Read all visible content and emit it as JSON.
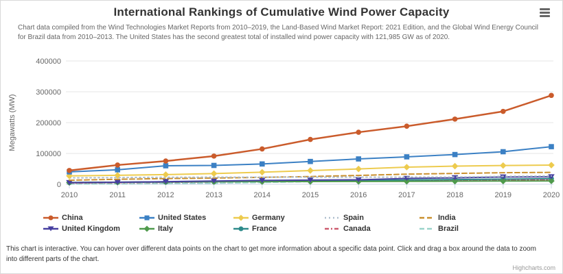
{
  "header": {
    "title": "International Rankings of Cumulative Wind Power Capacity",
    "subtitle": "Chart data compiled from the Wind Technologies Market Reports from 2010–2019, the Land-Based Wind Market Report: 2021 Edition, and the Global Wind Energy Council for Brazil data from 2010–2013. The United States has the second greatest total of installed wind power capacity with 121,985 GW as of 2020.",
    "menu_icon": "hamburger-menu-icon"
  },
  "footer": {
    "caption": "This chart is interactive. You can hover over different data points on the chart to get more information about a specific data point. Click and drag a box around the data to zoom into different parts of the chart.",
    "credits": "Highcharts.com"
  },
  "chart_data": {
    "type": "line",
    "title": "International Rankings of Cumulative Wind Power Capacity",
    "xlabel": "",
    "ylabel": "Megawatts (MW)",
    "categories": [
      "2010",
      "2011",
      "2012",
      "2013",
      "2014",
      "2015",
      "2016",
      "2017",
      "2018",
      "2019",
      "2020"
    ],
    "ylim": [
      0,
      400000
    ],
    "yticks": [
      0,
      100000,
      200000,
      300000,
      400000
    ],
    "grid": true,
    "legend_position": "bottom",
    "axis_text_color": "#666666",
    "grid_color": "#e6e6e6",
    "axis_line_color": "#ccd6eb",
    "series": [
      {
        "name": "China",
        "color": "#ca5b2b",
        "dash": "solid",
        "marker": "circle",
        "width": 2.5,
        "values": [
          44733,
          62364,
          75324,
          91413,
          114609,
          145362,
          168732,
          188392,
          211392,
          236402,
          288320
        ]
      },
      {
        "name": "United States",
        "color": "#3b80c4",
        "dash": "solid",
        "marker": "square",
        "width": 2,
        "values": [
          40180,
          46919,
          60007,
          61110,
          65877,
          73992,
          82184,
          88973,
          96433,
          105583,
          121985
        ]
      },
      {
        "name": "Germany",
        "color": "#edcb4e",
        "dash": "solid",
        "marker": "diamond",
        "width": 2,
        "values": [
          27191,
          29075,
          31270,
          34660,
          39128,
          44580,
          49587,
          55580,
          58843,
          60822,
          62184
        ]
      },
      {
        "name": "Spain",
        "color": "#aebecd",
        "dash": "dot",
        "marker": "none",
        "width": 2,
        "values": [
          20623,
          21673,
          22796,
          22959,
          22987,
          23025,
          23057,
          23170,
          23484,
          25742,
          26819
        ]
      },
      {
        "name": "India",
        "color": "#c98f2d",
        "dash": "dash",
        "marker": "none",
        "width": 2,
        "values": [
          13065,
          16084,
          18421,
          20150,
          22465,
          25088,
          28700,
          32848,
          35129,
          37505,
          38559
        ]
      },
      {
        "name": "United Kingdom",
        "color": "#463fa0",
        "dash": "solid",
        "marker": "triangle-down",
        "width": 2,
        "values": [
          5203,
          6540,
          8445,
          10531,
          12440,
          13603,
          14542,
          18872,
          20970,
          23515,
          24167
        ]
      },
      {
        "name": "Italy",
        "color": "#4f9a4c",
        "dash": "solid",
        "marker": "diamond",
        "width": 2,
        "values": [
          5797,
          6737,
          8144,
          8552,
          8663,
          8958,
          9257,
          9479,
          9958,
          10512,
          10839
        ]
      },
      {
        "name": "France",
        "color": "#2e8b8b",
        "dash": "solid",
        "marker": "circle",
        "width": 2,
        "values": [
          5660,
          6800,
          7196,
          8243,
          9285,
          10358,
          11566,
          13759,
          15309,
          16646,
          17946
        ]
      },
      {
        "name": "Canada",
        "color": "#cc5a6e",
        "dash": "dashdot",
        "marker": "none",
        "width": 2,
        "values": [
          4008,
          5265,
          6200,
          7803,
          9694,
          11205,
          11900,
          12239,
          12816,
          13413,
          13577
        ]
      },
      {
        "name": "Brazil",
        "color": "#99d3c9",
        "dash": "dash",
        "marker": "none",
        "width": 2,
        "values": [
          927,
          1509,
          2508,
          3466,
          5939,
          8715,
          10740,
          12763,
          14707,
          15364,
          17750
        ]
      }
    ]
  }
}
